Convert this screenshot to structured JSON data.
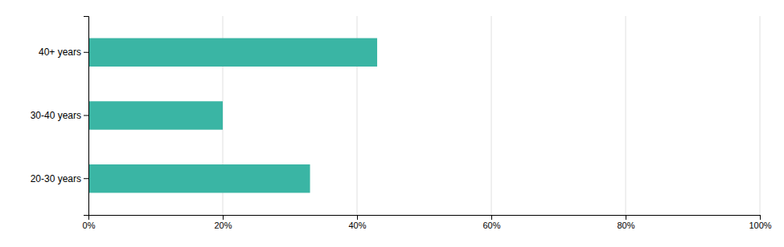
{
  "chart_data": {
    "type": "bar",
    "orientation": "horizontal",
    "categories": [
      "20-30 years",
      "30-40 years",
      "40+ years"
    ],
    "values": [
      33,
      20,
      43
    ],
    "color": "#3ab5a4",
    "xlim": [
      0,
      100
    ],
    "xticks": [
      {
        "value": 0,
        "label": "0%"
      },
      {
        "value": 20,
        "label": "20%"
      },
      {
        "value": 40,
        "label": "40%"
      },
      {
        "value": 60,
        "label": "60%"
      },
      {
        "value": 80,
        "label": "80%"
      },
      {
        "value": 100,
        "label": "100%"
      }
    ],
    "grid": true
  }
}
